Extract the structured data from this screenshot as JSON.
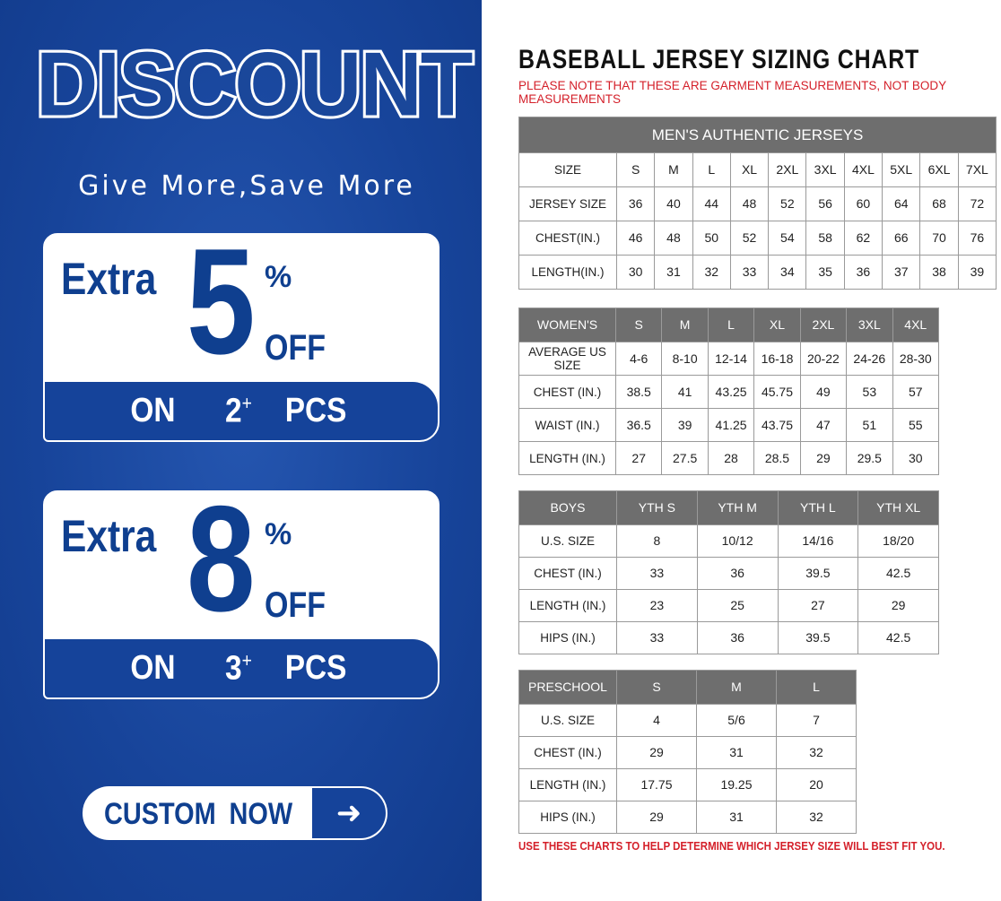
{
  "promo": {
    "headline": "DISCOUNT",
    "tagline": "Give More,Save More",
    "offers": [
      {
        "extra": "Extra",
        "amount": "5",
        "percent": "%",
        "off": "OFF",
        "on": "ON",
        "qty": "2",
        "qty_sup": "+",
        "pcs": "PCS"
      },
      {
        "extra": "Extra",
        "amount": "8",
        "percent": "%",
        "off": "OFF",
        "on": "ON",
        "qty": "3",
        "qty_sup": "+",
        "pcs": "PCS"
      }
    ],
    "cta_label": "CUSTOM NOW",
    "cta_icon": "arrow-right-icon",
    "brand_color": "#15439a"
  },
  "chart": {
    "title": "BASEBALL JERSEY SIZING CHART",
    "note": "PLEASE NOTE THAT THESE ARE GARMENT MEASUREMENTS, NOT BODY MEASUREMENTS",
    "footer": "USE THESE CHARTS TO HELP DETERMINE WHICH JERSEY SIZE WILL BEST FIT YOU.",
    "header_color": "#6e6e6e",
    "note_color": "#d4202a"
  },
  "tables": {
    "men": {
      "caption": "MEN'S AUTHENTIC JERSEYS",
      "header": [
        "SIZE",
        "S",
        "M",
        "L",
        "XL",
        "2XL",
        "3XL",
        "4XL",
        "5XL",
        "6XL",
        "7XL"
      ],
      "rows": [
        [
          "JERSEY SIZE",
          "36",
          "40",
          "44",
          "48",
          "52",
          "56",
          "60",
          "64",
          "68",
          "72"
        ],
        [
          "CHEST(IN.)",
          "46",
          "48",
          "50",
          "52",
          "54",
          "58",
          "62",
          "66",
          "70",
          "76"
        ],
        [
          "LENGTH(IN.)",
          "30",
          "31",
          "32",
          "33",
          "34",
          "35",
          "36",
          "37",
          "38",
          "39"
        ]
      ]
    },
    "women": {
      "header": [
        "WOMEN'S",
        "S",
        "M",
        "L",
        "XL",
        "2XL",
        "3XL",
        "4XL"
      ],
      "rows": [
        [
          "AVERAGE US SIZE",
          "4-6",
          "8-10",
          "12-14",
          "16-18",
          "20-22",
          "24-26",
          "28-30"
        ],
        [
          "CHEST (IN.)",
          "38.5",
          "41",
          "43.25",
          "45.75",
          "49",
          "53",
          "57"
        ],
        [
          "WAIST (IN.)",
          "36.5",
          "39",
          "41.25",
          "43.75",
          "47",
          "51",
          "55"
        ],
        [
          "LENGTH (IN.)",
          "27",
          "27.5",
          "28",
          "28.5",
          "29",
          "29.5",
          "30"
        ]
      ]
    },
    "boys": {
      "header": [
        "BOYS",
        "YTH S",
        "YTH M",
        "YTH L",
        "YTH XL"
      ],
      "rows": [
        [
          "U.S. SIZE",
          "8",
          "10/12",
          "14/16",
          "18/20"
        ],
        [
          "CHEST (IN.)",
          "33",
          "36",
          "39.5",
          "42.5"
        ],
        [
          "LENGTH (IN.)",
          "23",
          "25",
          "27",
          "29"
        ],
        [
          "HIPS (IN.)",
          "33",
          "36",
          "39.5",
          "42.5"
        ]
      ]
    },
    "preschool": {
      "header": [
        "PRESCHOOL",
        "S",
        "M",
        "L"
      ],
      "rows": [
        [
          "U.S. SIZE",
          "4",
          "5/6",
          "7"
        ],
        [
          "CHEST (IN.)",
          "29",
          "31",
          "32"
        ],
        [
          "LENGTH (IN.)",
          "17.75",
          "19.25",
          "20"
        ],
        [
          "HIPS (IN.)",
          "29",
          "31",
          "32"
        ]
      ]
    }
  }
}
